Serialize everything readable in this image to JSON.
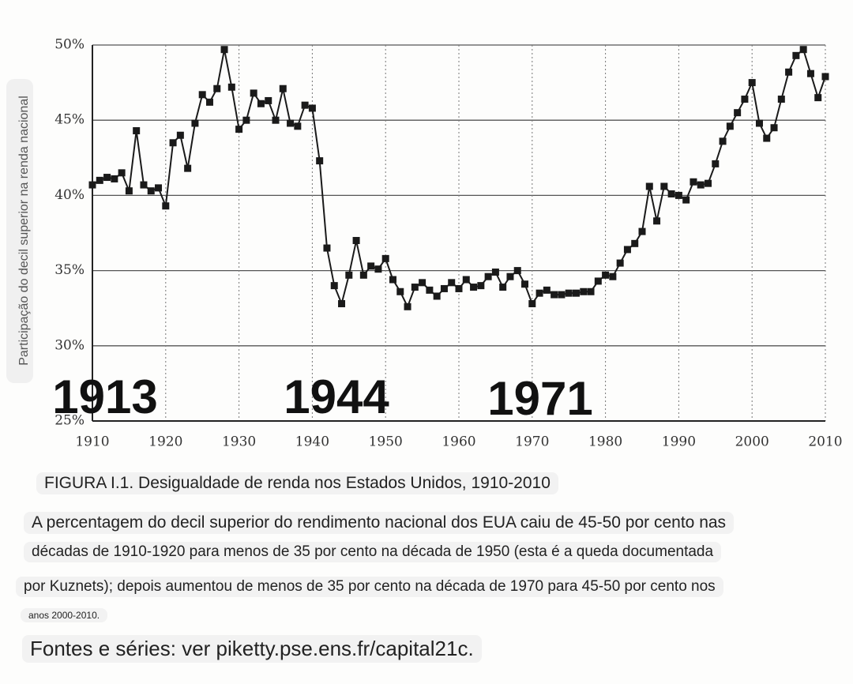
{
  "chart_data": {
    "type": "line",
    "title": "FIGURA I.1. Desigualdade de renda nos Estados Unidos, 1910-2010",
    "ylabel": "Participação do decil superior na renda nacional",
    "description": [
      "A percentagem do decil superior do rendimento nacional dos EUA caiu de 45-50 por cento nas",
      "décadas de 1910-1920 para menos de 35 por cento na década de 1950 (esta é a queda documentada",
      "por Kuznets); depois aumentou de menos de 35 por cento na década de 1970 para 45-50 por cento nos",
      "anos 2000-2010."
    ],
    "source": "Fontes e séries: ver piketty.pse.ens.fr/capital21c.",
    "annotations": [
      "1913",
      "1944",
      "1971"
    ],
    "x": [
      1910,
      1911,
      1912,
      1913,
      1914,
      1915,
      1916,
      1917,
      1918,
      1919,
      1920,
      1921,
      1922,
      1923,
      1924,
      1925,
      1926,
      1927,
      1928,
      1929,
      1930,
      1931,
      1932,
      1933,
      1934,
      1935,
      1936,
      1937,
      1938,
      1939,
      1940,
      1941,
      1942,
      1943,
      1944,
      1945,
      1946,
      1947,
      1948,
      1949,
      1950,
      1951,
      1952,
      1953,
      1954,
      1955,
      1956,
      1957,
      1958,
      1959,
      1960,
      1961,
      1962,
      1963,
      1964,
      1965,
      1966,
      1967,
      1968,
      1969,
      1970,
      1971,
      1972,
      1973,
      1974,
      1975,
      1976,
      1977,
      1978,
      1979,
      1980,
      1981,
      1982,
      1983,
      1984,
      1985,
      1986,
      1987,
      1988,
      1989,
      1990,
      1991,
      1992,
      1993,
      1994,
      1995,
      1996,
      1997,
      1998,
      1999,
      2000,
      2001,
      2002,
      2003,
      2004,
      2005,
      2006,
      2007,
      2008,
      2009,
      2010
    ],
    "series": [
      {
        "color": "#1a1a1a",
        "values": [
          40.7,
          41.0,
          41.2,
          41.1,
          41.5,
          40.3,
          44.3,
          40.7,
          40.3,
          40.5,
          39.3,
          43.5,
          44.0,
          41.8,
          44.8,
          46.7,
          46.2,
          47.1,
          49.7,
          47.2,
          44.4,
          45.0,
          46.8,
          46.1,
          46.3,
          45.0,
          47.1,
          44.8,
          44.6,
          46.0,
          45.8,
          42.3,
          36.5,
          34.0,
          32.8,
          34.7,
          37.0,
          34.7,
          35.3,
          35.1,
          35.8,
          34.4,
          33.6,
          32.6,
          33.9,
          34.2,
          33.7,
          33.3,
          33.8,
          34.2,
          33.8,
          34.4,
          33.9,
          34.0,
          34.6,
          34.9,
          33.9,
          34.6,
          35.0,
          34.1,
          32.8,
          33.5,
          33.7,
          33.4,
          33.4,
          33.5,
          33.5,
          33.6,
          33.6,
          34.3,
          34.7,
          34.6,
          35.5,
          36.4,
          36.8,
          37.6,
          40.6,
          38.3,
          40.6,
          40.1,
          40.0,
          39.7,
          40.9,
          40.7,
          40.8,
          42.1,
          43.6,
          44.6,
          45.5,
          46.4,
          47.5,
          44.8,
          43.8,
          44.5,
          46.4,
          48.2,
          49.3,
          49.7,
          48.1,
          46.5,
          47.9
        ]
      }
    ],
    "xlim": [
      1910,
      2010
    ],
    "ylim": [
      25,
      50
    ],
    "xticks": [
      1910,
      1920,
      1930,
      1940,
      1950,
      1960,
      1970,
      1980,
      1990,
      2000,
      2010
    ],
    "yticks": [
      {
        "value": 25,
        "label": "25%"
      },
      {
        "value": 30,
        "label": "30%"
      },
      {
        "value": 35,
        "label": "35%"
      },
      {
        "value": 40,
        "label": "40%"
      },
      {
        "value": 45,
        "label": "45%"
      },
      {
        "value": 50,
        "label": "50%"
      }
    ],
    "grid": true
  }
}
